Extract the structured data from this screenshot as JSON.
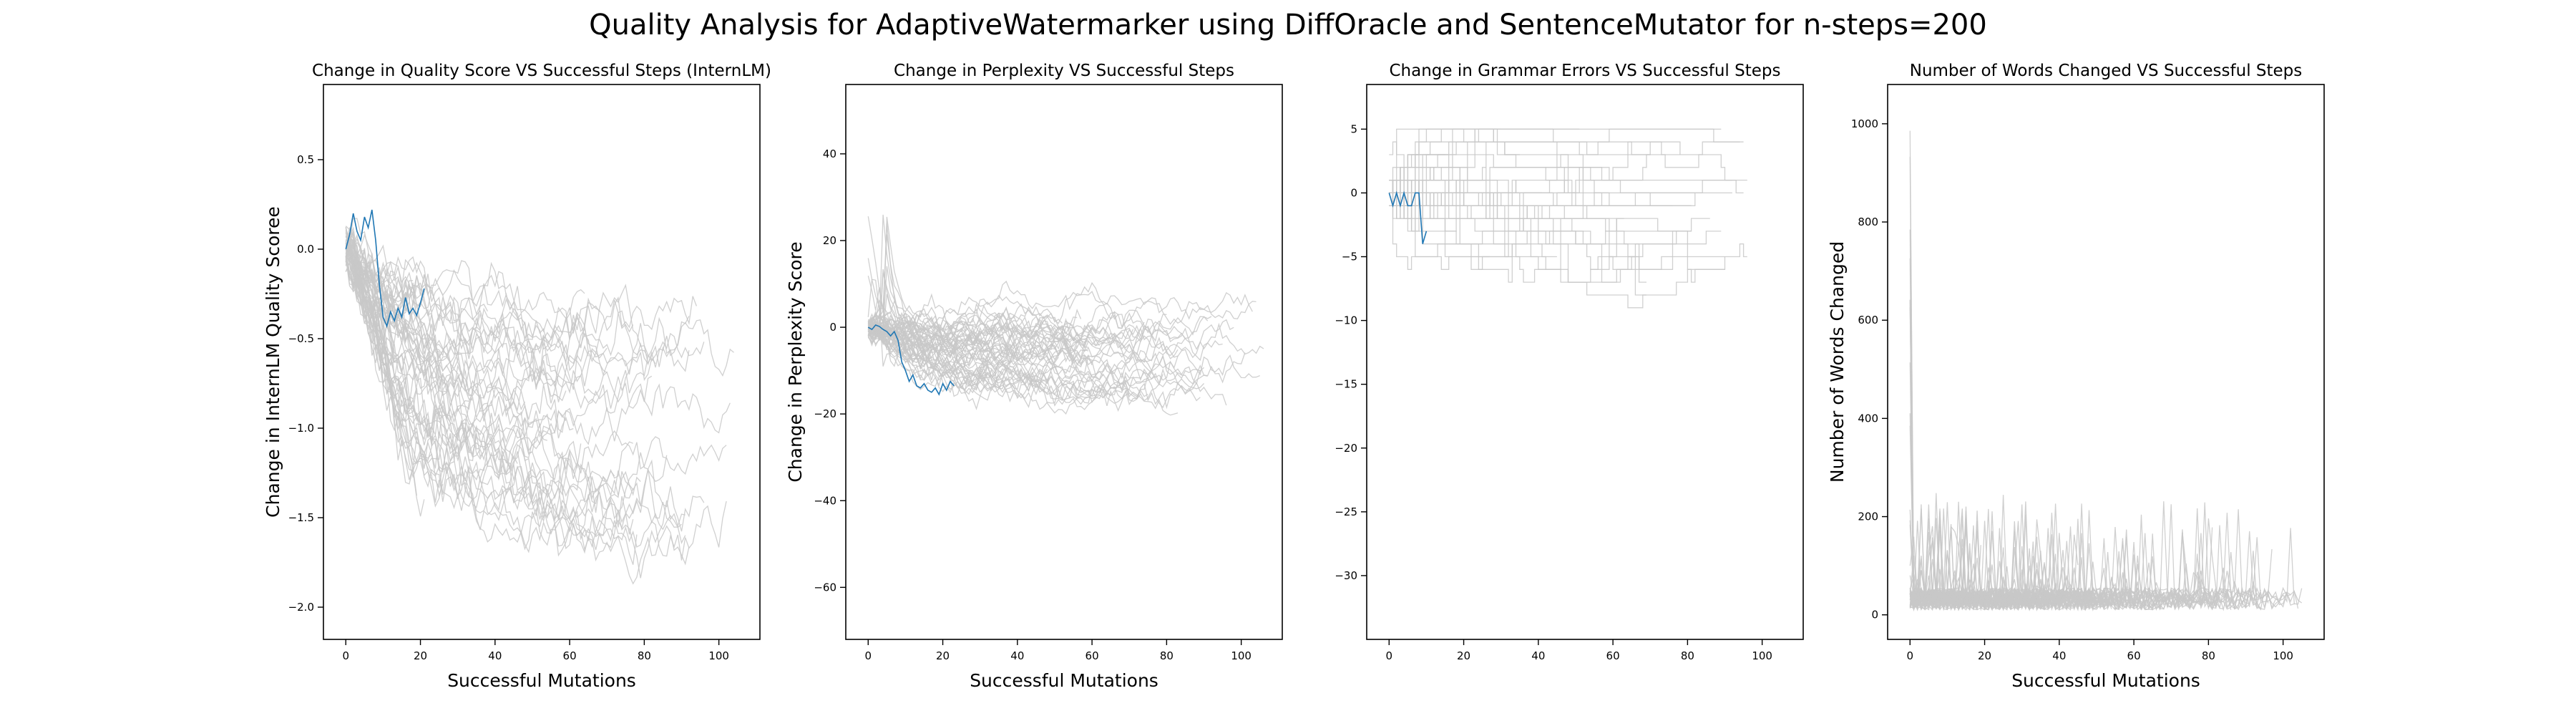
{
  "figure_title": "Quality Analysis for AdaptiveWatermarker using DiffOracle and SentenceMutator for n-steps=200",
  "background_line_color": "#c8c8c8",
  "highlight_line_color": "#1f77b4",
  "chart_data": [
    {
      "type": "line",
      "title": "Change in Quality Score VS Successful Steps (InternLM)",
      "xlabel": "Successful Mutations",
      "ylabel": "Change in InternLM Quality Scoree",
      "xlim": [
        -6,
        111
      ],
      "ylim": [
        -2.18,
        0.92
      ],
      "xticks": [
        0,
        20,
        40,
        60,
        80,
        100
      ],
      "yticks": [
        -2.0,
        -1.5,
        -1.0,
        -0.5,
        0.0,
        0.5
      ],
      "ytick_labels": [
        "−2.0",
        "−1.5",
        "−1.0",
        "−0.5",
        "0.0",
        "0.5"
      ],
      "grid": false,
      "background_series_count": 60,
      "highlight_series": {
        "name": "",
        "x": [
          0,
          1,
          2,
          3,
          4,
          5,
          6,
          7,
          8,
          9,
          10,
          11,
          12,
          13,
          14,
          15,
          16,
          17,
          18,
          19,
          20,
          21
        ],
        "y": [
          0.0,
          0.08,
          0.2,
          0.1,
          0.05,
          0.18,
          0.12,
          0.22,
          0.05,
          -0.2,
          -0.38,
          -0.43,
          -0.35,
          -0.4,
          -0.33,
          -0.38,
          -0.27,
          -0.36,
          -0.33,
          -0.37,
          -0.3,
          -0.22
        ]
      }
    },
    {
      "type": "line",
      "title": "Change in Perplexity VS Successful Steps",
      "xlabel": "Successful Mutations",
      "ylabel": "Change in Perplexity Score",
      "xlim": [
        -6,
        111
      ],
      "ylim": [
        -72,
        56
      ],
      "xticks": [
        0,
        20,
        40,
        60,
        80,
        100
      ],
      "yticks": [
        -60,
        -40,
        -20,
        0,
        20,
        40
      ],
      "ytick_labels": [
        "−60",
        "−40",
        "−20",
        "0",
        "20",
        "40"
      ],
      "grid": false,
      "background_series_count": 60,
      "highlight_series": {
        "name": "",
        "x": [
          0,
          1,
          2,
          3,
          4,
          5,
          6,
          7,
          8,
          9,
          10,
          11,
          12,
          13,
          14,
          15,
          16,
          17,
          18,
          19,
          20,
          21,
          22,
          23
        ],
        "y": [
          0.0,
          -0.5,
          0.5,
          0.2,
          -0.5,
          -1.0,
          -2.0,
          -1.0,
          -3.0,
          -8.0,
          -10.0,
          -12.5,
          -11.0,
          -13.5,
          -14.0,
          -13.0,
          -14.5,
          -15.0,
          -14.0,
          -15.5,
          -13.0,
          -14.5,
          -12.5,
          -13.5
        ]
      }
    },
    {
      "type": "line",
      "title": "Change in Grammar Errors VS Successful Steps",
      "xlabel": "",
      "ylabel": "",
      "xlim": [
        -6,
        111
      ],
      "ylim": [
        -35,
        8.5
      ],
      "xticks": [
        0,
        20,
        40,
        60,
        80,
        100
      ],
      "yticks": [
        -30,
        -25,
        -20,
        -15,
        -10,
        -5,
        0,
        5
      ],
      "ytick_labels": [
        "−30",
        "−25",
        "−20",
        "−15",
        "−10",
        "−5",
        "0",
        "5"
      ],
      "grid": false,
      "background_series_count": 45,
      "highlight_series": {
        "name": "",
        "x": [
          0,
          1,
          2,
          3,
          4,
          5,
          6,
          7,
          8,
          9,
          10
        ],
        "y": [
          0,
          -1,
          0,
          -1,
          0,
          -1,
          -1,
          0,
          0,
          -4,
          -3
        ]
      }
    },
    {
      "type": "line",
      "title": "Number of Words Changed VS Successful Steps",
      "xlabel": "Successful Mutations",
      "ylabel": "Number of Words Changed",
      "xlim": [
        -6,
        111
      ],
      "ylim": [
        -50,
        1080
      ],
      "xticks": [
        0,
        20,
        40,
        60,
        80,
        100
      ],
      "yticks": [
        0,
        200,
        400,
        600,
        800,
        1000
      ],
      "ytick_labels": [
        "0",
        "200",
        "400",
        "600",
        "800",
        "1000"
      ],
      "grid": false,
      "background_series_count": 60,
      "highlight_series": null
    }
  ]
}
